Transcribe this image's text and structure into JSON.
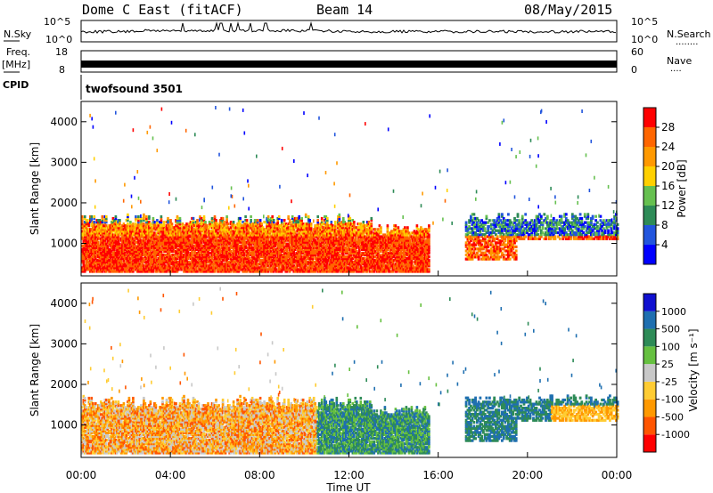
{
  "header": {
    "title": "Dome C East (fitACF)",
    "beam": "Beam 14",
    "date": "08/May/2015"
  },
  "side_labels": {
    "nsky": "N.Sky",
    "nsearch": "N.Search",
    "nsearch_dots": "........",
    "freq": "Freq.",
    "freq_unit": "[MHz]",
    "nave": "Nave",
    "nave_dots": "....",
    "cpid": "CPID",
    "cpid_value": "twofsound 3501"
  },
  "noise_ticks": {
    "left": [
      "10^5",
      "10^0"
    ],
    "right": [
      "10^5",
      "10^0"
    ]
  },
  "freq_ticks": {
    "left": [
      "18",
      "8"
    ],
    "right": [
      "60",
      "0"
    ]
  },
  "colors": {
    "power": [
      "#0000ff",
      "#2255dd",
      "#2e8b57",
      "#66c050",
      "#ffd000",
      "#ff9900",
      "#ff6600",
      "#ff0000"
    ],
    "velocity": [
      "#ff0000",
      "#ff5500",
      "#ff9900",
      "#ffcc33",
      "#c8c8c8",
      "#66c040",
      "#2e8b57",
      "#1f6fb0",
      "#1010d0"
    ]
  },
  "chart_data": [
    {
      "type": "heatmap",
      "name": "power",
      "ylabel": "Slant Range [km]",
      "ylim": [
        200,
        4500
      ],
      "yticks": [
        "1000",
        "2000",
        "3000",
        "4000"
      ],
      "xlim_hours": [
        0,
        24
      ],
      "colorbar": {
        "label": "Power [dB]",
        "range": [
          0,
          32
        ],
        "ticks": [
          "4",
          "8",
          "12",
          "16",
          "20",
          "24",
          "28"
        ]
      }
    },
    {
      "type": "heatmap",
      "name": "velocity",
      "ylabel": "Slant Range [km]",
      "ylim": [
        200,
        4500
      ],
      "yticks": [
        "1000",
        "2000",
        "3000",
        "4000"
      ],
      "xlim_hours": [
        0,
        24
      ],
      "xlabel": "Time UT",
      "xticks": [
        "00:00",
        "04:00",
        "08:00",
        "12:00",
        "16:00",
        "20:00",
        "00:00"
      ],
      "colorbar": {
        "label": "Velocity [m s⁻¹]",
        "ticks": [
          "1000",
          "500",
          "100",
          "25",
          "-25",
          "-100",
          "-500",
          "-1000"
        ]
      }
    }
  ]
}
